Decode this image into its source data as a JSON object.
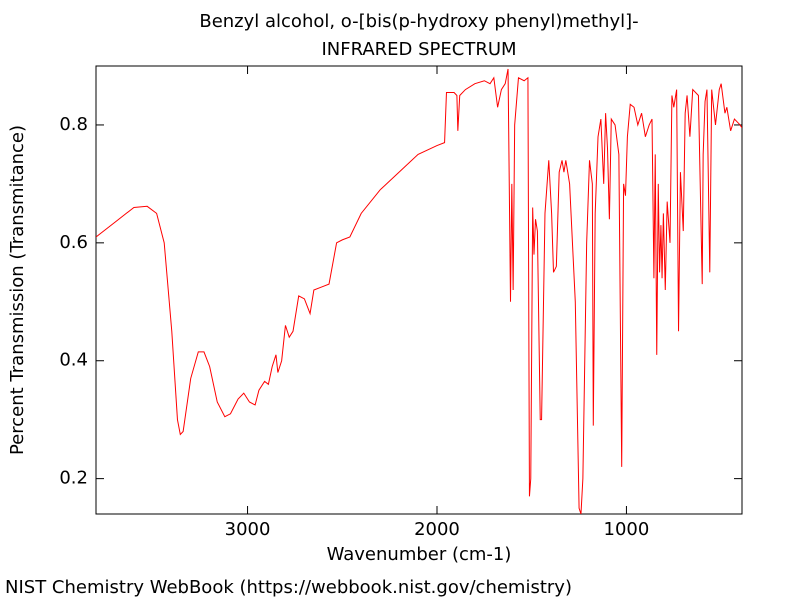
{
  "chart_data": {
    "type": "line",
    "title": "Benzyl alcohol, o-[bis(p-hydroxy phenyl)methyl]-",
    "subtitle": "INFRARED SPECTRUM",
    "xlabel": "Wavenumber (cm-1)",
    "ylabel": "Percent Transmission (Transmitance)",
    "xlim": [
      3800,
      390
    ],
    "ylim": [
      0.14,
      0.9
    ],
    "xticks": [
      3000,
      2000,
      1000
    ],
    "yticks": [
      0.2,
      0.4,
      0.6,
      0.8
    ],
    "color": "#ff0000",
    "x": [
      3800,
      3700,
      3600,
      3530,
      3480,
      3440,
      3400,
      3370,
      3355,
      3340,
      3300,
      3260,
      3230,
      3200,
      3160,
      3120,
      3090,
      3050,
      3020,
      2990,
      2960,
      2940,
      2910,
      2890,
      2870,
      2850,
      2840,
      2820,
      2800,
      2780,
      2760,
      2730,
      2700,
      2670,
      2650,
      2610,
      2570,
      2530,
      2500,
      2460,
      2400,
      2300,
      2200,
      2100,
      2000,
      1960,
      1950,
      1910,
      1895,
      1890,
      1880,
      1850,
      1800,
      1750,
      1720,
      1700,
      1680,
      1660,
      1640,
      1625,
      1612,
      1605,
      1598,
      1590,
      1570,
      1540,
      1520,
      1512,
      1505,
      1495,
      1488,
      1480,
      1470,
      1455,
      1448,
      1430,
      1410,
      1395,
      1385,
      1370,
      1355,
      1340,
      1330,
      1320,
      1300,
      1270,
      1250,
      1240,
      1230,
      1210,
      1195,
      1180,
      1175,
      1165,
      1150,
      1135,
      1120,
      1110,
      1100,
      1090,
      1080,
      1060,
      1040,
      1025,
      1015,
      1005,
      995,
      980,
      960,
      940,
      920,
      900,
      880,
      865,
      855,
      848,
      840,
      832,
      825,
      818,
      812,
      805,
      795,
      785,
      770,
      760,
      750,
      735,
      725,
      715,
      700,
      690,
      680,
      665,
      650,
      620,
      600,
      595,
      585,
      575,
      560,
      550,
      530,
      510,
      500,
      480,
      470,
      450,
      430,
      400,
      390
    ],
    "values": [
      0.61,
      0.635,
      0.66,
      0.662,
      0.65,
      0.6,
      0.45,
      0.3,
      0.275,
      0.28,
      0.37,
      0.415,
      0.415,
      0.39,
      0.33,
      0.305,
      0.31,
      0.335,
      0.345,
      0.33,
      0.325,
      0.35,
      0.365,
      0.36,
      0.39,
      0.41,
      0.38,
      0.4,
      0.46,
      0.44,
      0.45,
      0.51,
      0.505,
      0.48,
      0.52,
      0.525,
      0.53,
      0.6,
      0.605,
      0.61,
      0.65,
      0.69,
      0.72,
      0.75,
      0.765,
      0.77,
      0.855,
      0.855,
      0.85,
      0.79,
      0.85,
      0.86,
      0.87,
      0.875,
      0.87,
      0.88,
      0.83,
      0.86,
      0.87,
      0.895,
      0.5,
      0.7,
      0.52,
      0.8,
      0.88,
      0.875,
      0.88,
      0.17,
      0.2,
      0.66,
      0.58,
      0.64,
      0.62,
      0.3,
      0.3,
      0.65,
      0.74,
      0.65,
      0.55,
      0.56,
      0.72,
      0.74,
      0.72,
      0.74,
      0.7,
      0.5,
      0.15,
      0.14,
      0.2,
      0.6,
      0.74,
      0.7,
      0.29,
      0.65,
      0.78,
      0.81,
      0.7,
      0.82,
      0.76,
      0.64,
      0.81,
      0.8,
      0.75,
      0.22,
      0.7,
      0.68,
      0.78,
      0.835,
      0.83,
      0.8,
      0.82,
      0.78,
      0.8,
      0.81,
      0.54,
      0.75,
      0.41,
      0.7,
      0.55,
      0.63,
      0.54,
      0.65,
      0.52,
      0.67,
      0.6,
      0.85,
      0.83,
      0.86,
      0.45,
      0.72,
      0.62,
      0.82,
      0.85,
      0.78,
      0.86,
      0.85,
      0.53,
      0.75,
      0.84,
      0.86,
      0.55,
      0.86,
      0.8,
      0.86,
      0.87,
      0.82,
      0.83,
      0.79,
      0.81,
      0.8,
      0.795
    ]
  },
  "footer": "NIST Chemistry WebBook (https://webbook.nist.gov/chemistry)"
}
